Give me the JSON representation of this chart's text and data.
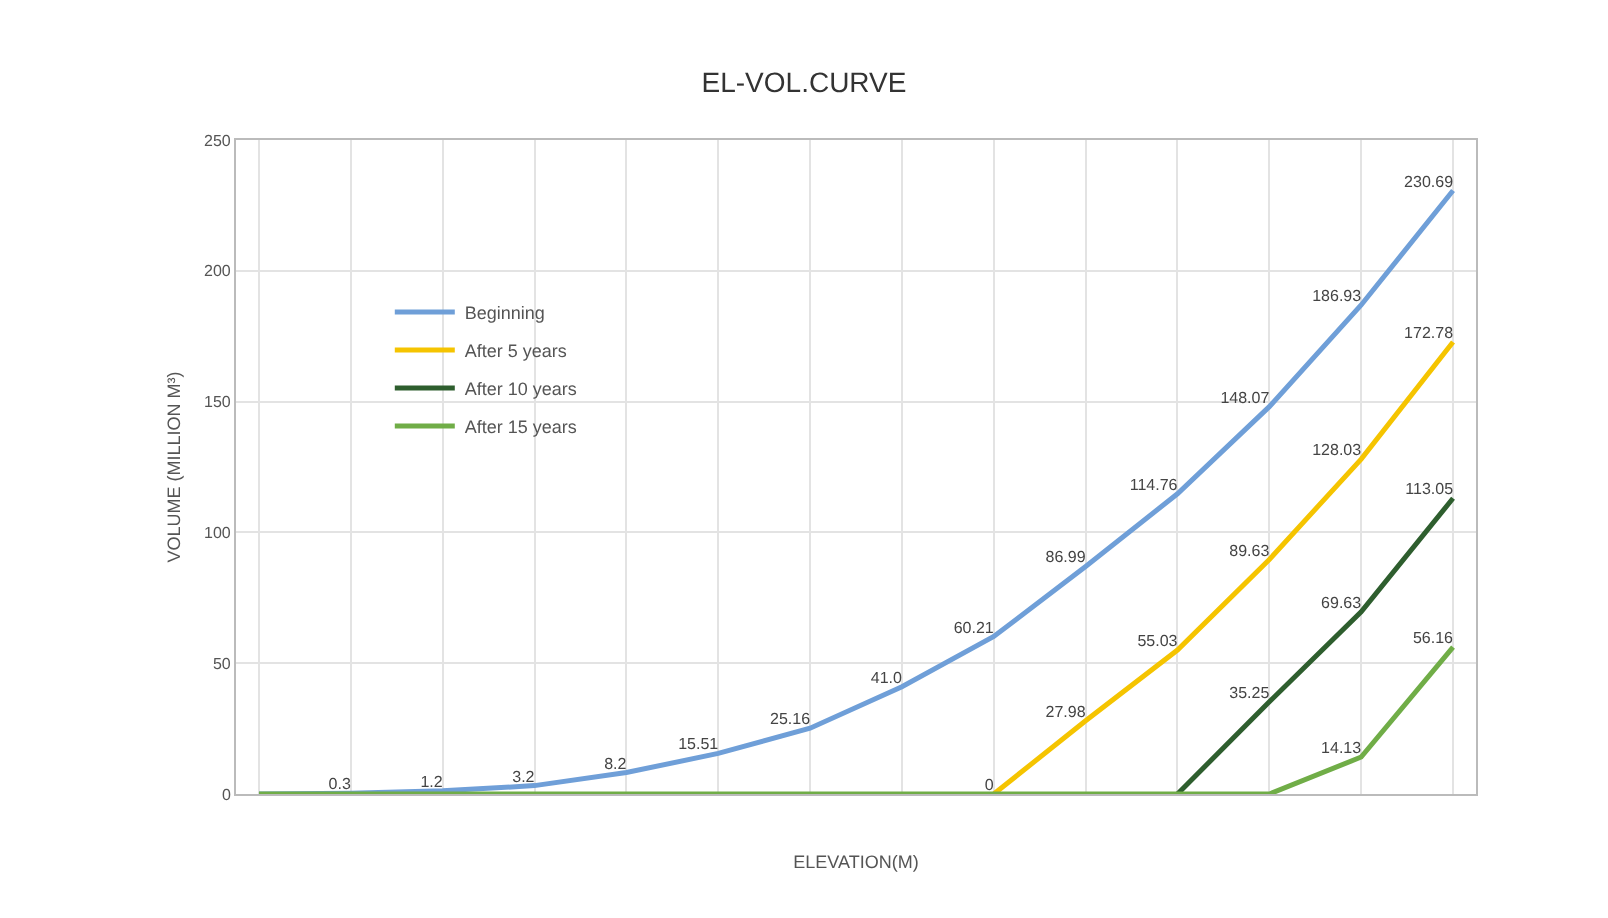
{
  "chart_data": {
    "type": "line",
    "title": "EL-VOL.CURVE",
    "xlabel": "ELEVATION(M)",
    "ylabel": "VOLUME (MILLION M³)",
    "categories": [
      null,
      null,
      null,
      null,
      null,
      null,
      null,
      null,
      null,
      null,
      null,
      null,
      null,
      null
    ],
    "series": [
      {
        "name": "Beginning",
        "color": "#6f9fd8",
        "values": [
          0,
          0.3,
          1.2,
          3.2,
          8.2,
          15.51,
          25.16,
          41.0,
          60.21,
          86.99,
          114.76,
          148.07,
          186.93,
          230.69
        ],
        "value_labels": [
          null,
          "0.3",
          "1.2",
          "3.2",
          "8.2",
          "15.51",
          "25.16",
          "41.0",
          "60.21",
          "86.99",
          "114.76",
          "148.07",
          "186.93",
          "230.69"
        ]
      },
      {
        "name": "After 5 years",
        "color": "#f5c400",
        "values": [
          null,
          null,
          null,
          null,
          null,
          null,
          null,
          null,
          0,
          27.98,
          55.03,
          89.63,
          128.03,
          172.78
        ],
        "value_labels": [
          null,
          null,
          null,
          null,
          null,
          null,
          null,
          null,
          "0",
          "27.98",
          "55.03",
          "89.63",
          "128.03",
          "172.78"
        ]
      },
      {
        "name": "After 10 years",
        "color": "#2e5e2e",
        "values": [
          null,
          null,
          null,
          null,
          null,
          null,
          null,
          null,
          null,
          null,
          0,
          35.25,
          69.63,
          113.05
        ],
        "value_labels": [
          null,
          null,
          null,
          null,
          null,
          null,
          null,
          null,
          null,
          null,
          null,
          "35.25",
          "69.63",
          "113.05"
        ]
      },
      {
        "name": "After 15 years",
        "color": "#70ad47",
        "values": [
          0,
          0,
          0,
          0,
          0,
          0,
          0,
          0,
          0,
          0,
          0,
          0,
          14.13,
          56.16
        ],
        "value_labels": [
          null,
          null,
          null,
          null,
          null,
          null,
          null,
          null,
          null,
          null,
          null,
          null,
          "14.13",
          "56.16"
        ]
      }
    ],
    "ylim": [
      0,
      250
    ],
    "yticks": [
      0,
      50,
      100,
      150,
      200,
      250
    ],
    "grid": true,
    "legend": "left",
    "marker": "none",
    "line_style": "solid"
  }
}
